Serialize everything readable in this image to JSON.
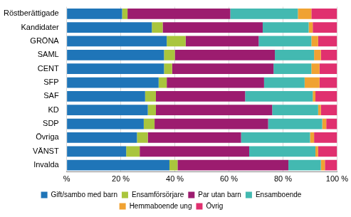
{
  "chart_data": {
    "type": "bar",
    "orientation": "horizontal",
    "stacked": true,
    "grid": true,
    "legend": "bottom",
    "categories": [
      "Röstberättigade",
      "Kandidater",
      "GRÖNA",
      "SAML",
      "CENT",
      "SFP",
      "SAF",
      "KD",
      "SDP",
      "Övriga",
      "VÄNST",
      "Invalda"
    ],
    "series": [
      {
        "name": "Gift/sambo med barn",
        "color": "#1f75b8",
        "values": [
          20.5,
          31.5,
          37,
          36,
          36,
          34,
          29,
          30,
          28.5,
          26,
          22,
          38
        ]
      },
      {
        "name": "Ensamförsörjare",
        "color": "#a9c53d",
        "values": [
          2,
          4,
          7,
          4,
          3,
          3,
          4,
          3,
          4,
          4,
          5,
          3
        ]
      },
      {
        "name": "Par utan barn",
        "color": "#9c1c6f",
        "values": [
          38,
          37,
          27,
          37,
          37.5,
          36,
          33,
          43,
          42,
          34.5,
          40.5,
          41
        ]
      },
      {
        "name": "Ensamboende",
        "color": "#43b9b1",
        "values": [
          25,
          17,
          19.5,
          14.5,
          14,
          15,
          25,
          17,
          20,
          25.5,
          24.5,
          12
        ]
      },
      {
        "name": "Hemmaboende ung",
        "color": "#f0a232",
        "values": [
          5,
          1.5,
          2.5,
          2.5,
          3,
          5.5,
          1,
          1,
          1.5,
          1.5,
          1,
          1.5
        ]
      },
      {
        "name": "Övrig",
        "color": "#e0306f",
        "values": [
          9.5,
          9,
          7,
          6,
          6.5,
          6.5,
          8,
          6,
          4,
          8.5,
          7,
          4.5
        ]
      }
    ],
    "xlim": [
      0,
      100
    ],
    "xticks": [
      {
        "value": 0,
        "label": "%"
      },
      {
        "value": 20,
        "label": "20 %"
      },
      {
        "value": 40,
        "label": "40 %"
      },
      {
        "value": 60,
        "label": "60 %"
      },
      {
        "value": 80,
        "label": "80 %"
      },
      {
        "value": 100,
        "label": "100 %"
      }
    ]
  }
}
